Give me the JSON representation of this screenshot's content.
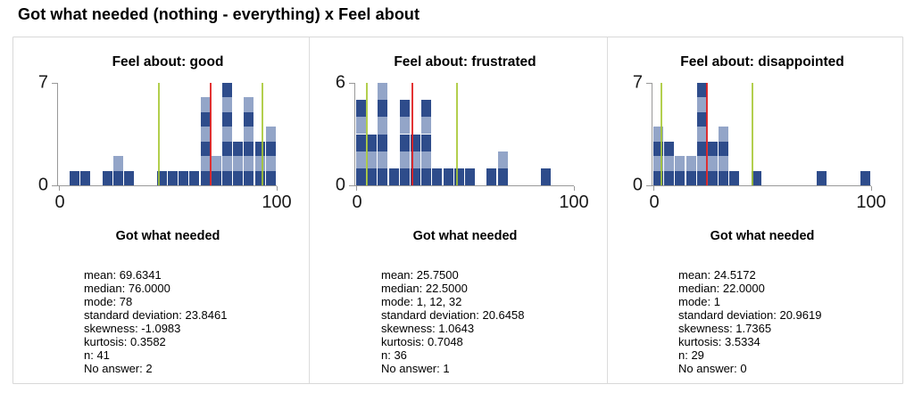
{
  "page_title": "Got what needed (nothing - everything) x Feel about",
  "colors": {
    "bar_dark": "#2e4c8b",
    "bar_light": "#93a5c8",
    "mean_line": "rgba(224,30,30,0.9)",
    "sd_line": "rgba(166,199,47,0.85)",
    "axis": "#999999",
    "border": "#d8d8d8"
  },
  "stats_labels": {
    "mean": "mean",
    "median": "median",
    "mode": "mode",
    "standard_deviation": "standard deviation",
    "skewness": "skewness",
    "kurtosis": "kurtosis",
    "n": "n",
    "no_answer": "No answer"
  },
  "chart_data": [
    {
      "type": "bar",
      "title": "Feel about: good",
      "xlabel": "Got what needed",
      "xlim": [
        0,
        100
      ],
      "ylim": [
        0,
        7
      ],
      "xticks": [
        "0",
        "100"
      ],
      "yticks": [
        "0",
        "7"
      ],
      "bin_width": 5,
      "bins": [
        {
          "start": 5,
          "count": 1
        },
        {
          "start": 10,
          "count": 1
        },
        {
          "start": 20,
          "count": 1
        },
        {
          "start": 25,
          "count": 2
        },
        {
          "start": 30,
          "count": 1
        },
        {
          "start": 45,
          "count": 1
        },
        {
          "start": 50,
          "count": 1
        },
        {
          "start": 55,
          "count": 1
        },
        {
          "start": 60,
          "count": 1
        },
        {
          "start": 65,
          "count": 6
        },
        {
          "start": 70,
          "count": 2
        },
        {
          "start": 75,
          "count": 7
        },
        {
          "start": 80,
          "count": 3
        },
        {
          "start": 85,
          "count": 6
        },
        {
          "start": 90,
          "count": 3
        },
        {
          "start": 95,
          "count": 4
        }
      ],
      "mean_value": 69.6341,
      "sd_value": 23.8461,
      "stats": {
        "mean": "69.6341",
        "median": "76.0000",
        "mode": "78",
        "standard_deviation": "23.8461",
        "skewness": "-1.0983",
        "kurtosis": "0.3582",
        "n": "41",
        "no_answer": "2"
      }
    },
    {
      "type": "bar",
      "title": "Feel about: frustrated",
      "xlabel": "Got what needed",
      "xlim": [
        0,
        100
      ],
      "ylim": [
        0,
        6
      ],
      "xticks": [
        "0",
        "100"
      ],
      "yticks": [
        "0",
        "6"
      ],
      "bin_width": 5,
      "bins": [
        {
          "start": 0,
          "count": 5
        },
        {
          "start": 5,
          "count": 3
        },
        {
          "start": 10,
          "count": 6
        },
        {
          "start": 15,
          "count": 1
        },
        {
          "start": 20,
          "count": 5
        },
        {
          "start": 25,
          "count": 3
        },
        {
          "start": 30,
          "count": 5
        },
        {
          "start": 35,
          "count": 1
        },
        {
          "start": 40,
          "count": 1
        },
        {
          "start": 45,
          "count": 1
        },
        {
          "start": 50,
          "count": 1
        },
        {
          "start": 60,
          "count": 1
        },
        {
          "start": 65,
          "count": 2
        },
        {
          "start": 85,
          "count": 1
        }
      ],
      "mean_value": 25.75,
      "sd_value": 20.6458,
      "stats": {
        "mean": "25.7500",
        "median": "22.5000",
        "mode": "1, 12, 32",
        "standard_deviation": "20.6458",
        "skewness": "1.0643",
        "kurtosis": "0.7048",
        "n": "36",
        "no_answer": "1"
      }
    },
    {
      "type": "bar",
      "title": "Feel about: disappointed",
      "xlabel": "Got what needed",
      "xlim": [
        0,
        100
      ],
      "ylim": [
        0,
        7
      ],
      "xticks": [
        "0",
        "100"
      ],
      "yticks": [
        "0",
        "7"
      ],
      "bin_width": 5,
      "bins": [
        {
          "start": 0,
          "count": 4
        },
        {
          "start": 5,
          "count": 3
        },
        {
          "start": 10,
          "count": 2
        },
        {
          "start": 15,
          "count": 2
        },
        {
          "start": 20,
          "count": 7
        },
        {
          "start": 25,
          "count": 3
        },
        {
          "start": 30,
          "count": 4
        },
        {
          "start": 35,
          "count": 1
        },
        {
          "start": 45,
          "count": 1
        },
        {
          "start": 75,
          "count": 1
        },
        {
          "start": 95,
          "count": 1
        }
      ],
      "mean_value": 24.5172,
      "sd_value": 20.9619,
      "stats": {
        "mean": "24.5172",
        "median": "22.0000",
        "mode": "1",
        "standard_deviation": "20.9619",
        "skewness": "1.7365",
        "kurtosis": "3.5334",
        "n": "29",
        "no_answer": "0"
      }
    }
  ]
}
